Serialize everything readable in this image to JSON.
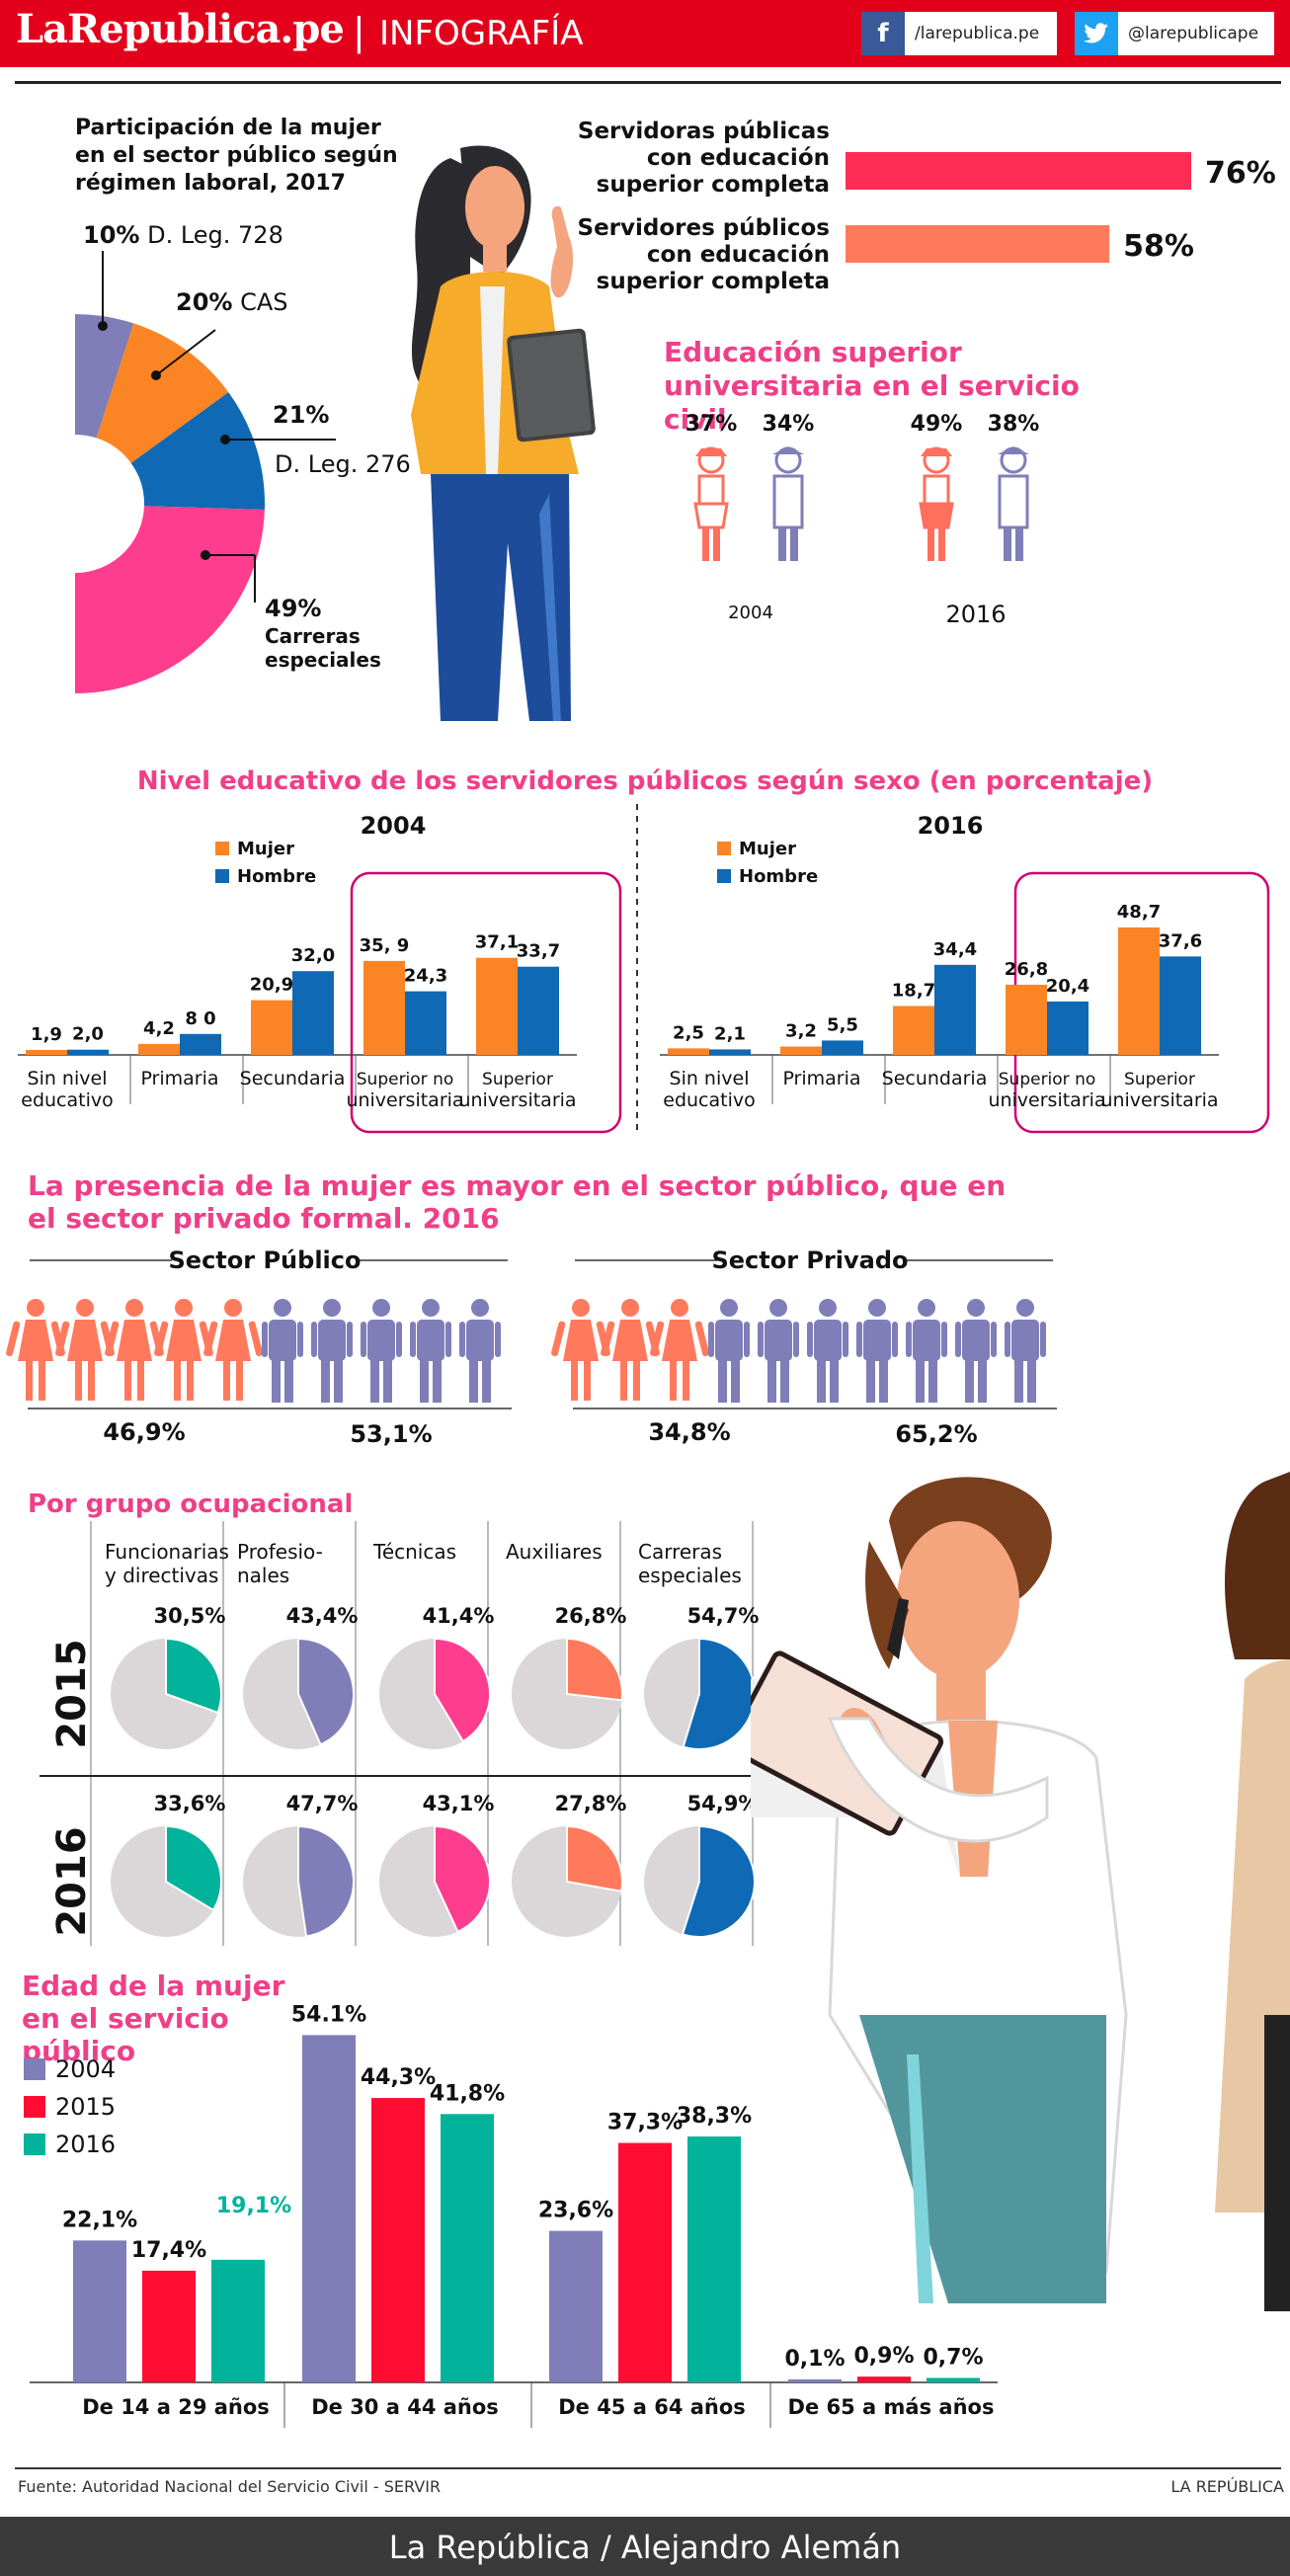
{
  "header": {
    "logo": "LaRepublica.pe",
    "separator": "|",
    "section": "INFOGRAFÍA",
    "facebook": "/larepublica.pe",
    "twitter": "@larepublicape"
  },
  "colors": {
    "brand_red": "#e3001b",
    "title_pink": "#ef3f88",
    "mujer_orange": "#fb8524",
    "hombre_blue": "#0f69b4",
    "c2004": "#7f7eb8",
    "c2015": "#ff0c33",
    "c2016": "#01b39b"
  },
  "chart_data": [
    {
      "id": "participacion",
      "type": "pie",
      "title": "Participación de la mujer en el sector público según régimen laboral, 2017",
      "slices": [
        {
          "label": "D. Leg. 728",
          "value": 10,
          "value_label": "10%",
          "color": "#7f7eb8"
        },
        {
          "label": "CAS",
          "value": 20,
          "value_label": "20%",
          "color": "#fb8524"
        },
        {
          "label": "D. Leg. 276",
          "value": 21,
          "value_label": "21%",
          "color": "#0f69b4"
        },
        {
          "label": "Carreras especiales",
          "value": 49,
          "value_label": "49%",
          "color": "#ff3d8f"
        }
      ]
    },
    {
      "id": "educacion_superior_completa",
      "type": "bar",
      "categories": [
        "Servidoras públicas con educación superior completa",
        "Servidores públicos con educación superior completa"
      ],
      "values": [
        76,
        58
      ],
      "value_labels": [
        "76%",
        "58%"
      ],
      "colors": [
        "#ff2d56",
        "#ff7a5c"
      ]
    },
    {
      "id": "universitaria_servicio_civil",
      "type": "table",
      "title": "Educación superior universitaria en el servicio civil",
      "years": [
        "2004",
        "2016"
      ],
      "mujer": [
        "37%",
        "49%"
      ],
      "hombre": [
        "34%",
        "38%"
      ]
    },
    {
      "id": "nivel_educativo",
      "type": "bar",
      "title": "Nivel educativo de los servidores públicos según sexo (en porcentaje)",
      "series_names": [
        "Mujer",
        "Hombre"
      ],
      "panels": [
        {
          "year": "2004",
          "categories": [
            "Sin nivel educativo",
            "Primaria",
            "Secundaria",
            "Superior no universitaria",
            "Superior universitaria"
          ],
          "mujer": [
            1.9,
            4.2,
            20.9,
            35.9,
            37.1
          ],
          "hombre": [
            2.0,
            8.0,
            32.0,
            24.3,
            33.7
          ],
          "mujer_labels": [
            "1,9",
            "4,2",
            "20,9",
            "35, 9",
            "37,1"
          ],
          "hombre_labels": [
            "2,0",
            "8 0",
            "32,0",
            "24,3",
            "33,7"
          ]
        },
        {
          "year": "2016",
          "categories": [
            "Sin nivel educativo",
            "Primaria",
            "Secundaria",
            "Superior no universitaria",
            "Superior universitaria"
          ],
          "mujer": [
            2.5,
            3.2,
            18.7,
            26.8,
            48.7
          ],
          "hombre": [
            2.1,
            5.5,
            34.4,
            20.4,
            37.6
          ],
          "mujer_labels": [
            "2,5",
            "3,2",
            "18,7",
            "26,8",
            "48,7"
          ],
          "hombre_labels": [
            "2,1",
            "5,5",
            "34,4",
            "20,4",
            "37,6"
          ]
        }
      ]
    },
    {
      "id": "presencia_mujer",
      "type": "bar",
      "title": "La presencia de la mujer es mayor en el sector público, que en el sector privado formal. 2016",
      "panels": [
        {
          "name": "Sector Público",
          "mujer": 46.9,
          "hombre": 53.1,
          "mujer_label": "46,9%",
          "hombre_label": "53,1%",
          "mujer_icons": 5,
          "hombre_icons": 5
        },
        {
          "name": "Sector Privado",
          "mujer": 34.8,
          "hombre": 65.2,
          "mujer_label": "34,8%",
          "hombre_label": "65,2%",
          "mujer_icons": 3,
          "hombre_icons": 7
        }
      ]
    },
    {
      "id": "grupo_ocupacional",
      "type": "pie",
      "title": "Por grupo ocupacional",
      "groups": [
        "Funcionarias y directivas",
        "Profesio- nales",
        "Técnicas",
        "Auxiliares",
        "Carreras especiales"
      ],
      "group_colors": [
        "#01b39b",
        "#7f7eb8",
        "#ff3d8f",
        "#ff7a5c",
        "#0f69b4"
      ],
      "rows": [
        {
          "year": "2015",
          "values": [
            30.5,
            43.4,
            41.4,
            26.8,
            54.7
          ],
          "labels": [
            "30,5%",
            "43,4%",
            "41,4%",
            "26,8%",
            "54,7%"
          ]
        },
        {
          "year": "2016",
          "values": [
            33.6,
            47.7,
            43.1,
            27.8,
            54.9
          ],
          "labels": [
            "33,6%",
            "47,7%",
            "43,1%",
            "27,8%",
            "54,9%"
          ]
        }
      ]
    },
    {
      "id": "edad_mujer",
      "type": "bar",
      "title": "Edad de la mujer en el servicio público",
      "categories": [
        "De 14 a 29 años",
        "De 30 a 44 años",
        "De 45 a 64 años",
        "De 65 a más años"
      ],
      "series": [
        {
          "name": "2004",
          "values": [
            22.1,
            54.1,
            23.6,
            0.1
          ],
          "labels": [
            "22,1%",
            "54.1%",
            "23,6%",
            "0,1%"
          ],
          "color": "#7f7eb8"
        },
        {
          "name": "2015",
          "values": [
            17.4,
            44.3,
            37.3,
            0.9
          ],
          "labels": [
            "17,4%",
            "44,3%",
            "37,3%",
            "0,9%"
          ],
          "color": "#ff0c33"
        },
        {
          "name": "2016",
          "values": [
            19.1,
            41.8,
            38.3,
            0.7
          ],
          "labels": [
            "19,1%",
            "41,8%",
            "38,3%",
            "0,7%"
          ],
          "color": "#01b39b"
        }
      ]
    }
  ],
  "footer": {
    "source": "Fuente: Autoridad Nacional del Servicio Civil - SERVIR",
    "brand": "LA REPÚBLICA",
    "credit": "La República / Alejandro Alemán"
  }
}
